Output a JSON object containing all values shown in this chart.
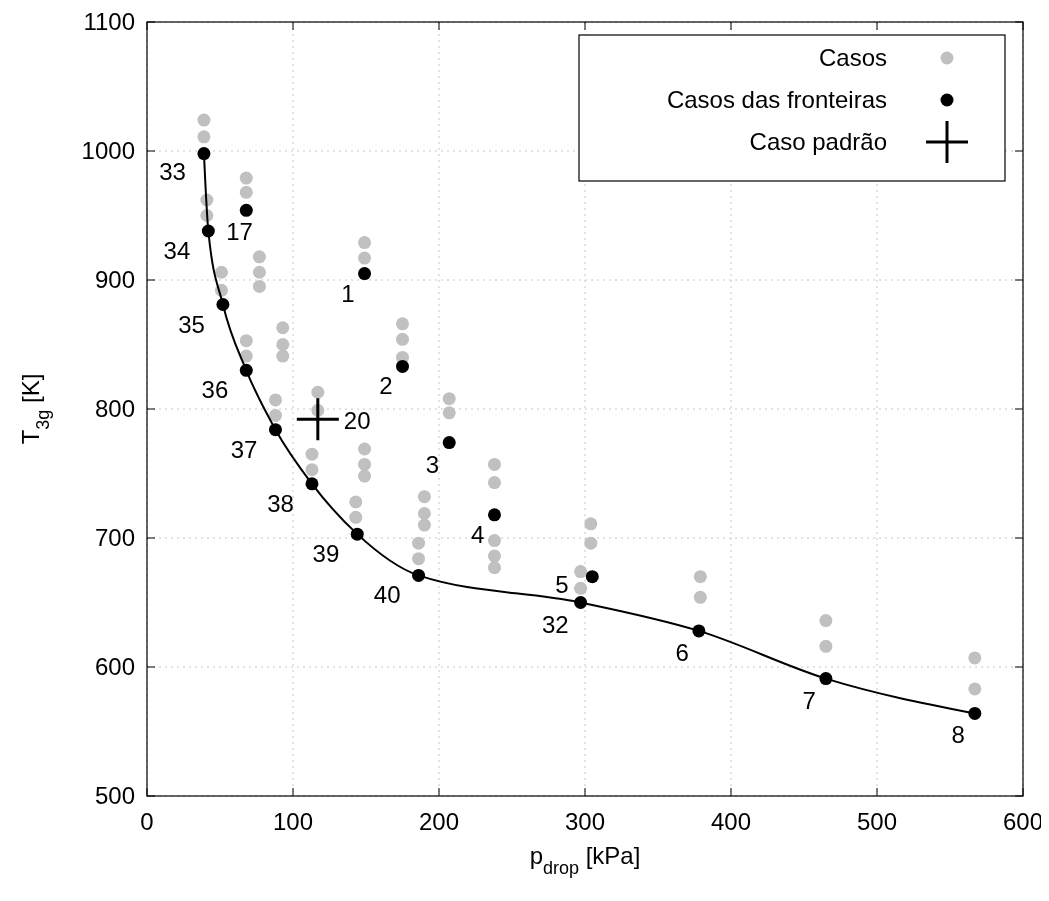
{
  "chart_data": {
    "type": "scatter",
    "xlabel": "p$_{drop}$ [kPa]",
    "ylabel": "T$_{3g}$ [K]",
    "xlim": [
      0,
      600
    ],
    "ylim": [
      500,
      1100
    ],
    "xticks": [
      0,
      100,
      200,
      300,
      400,
      500,
      600
    ],
    "yticks": [
      500,
      600,
      700,
      800,
      900,
      1000,
      1100
    ],
    "grid": true,
    "legend": "top right",
    "marker": "circle",
    "series": [
      {
        "name": "Casos",
        "color": "#c0c0c0",
        "x": [
          39,
          39,
          41,
          41,
          68,
          68,
          51,
          51,
          77,
          77,
          77,
          68,
          68,
          93,
          93,
          93,
          88,
          88,
          117,
          117,
          113,
          113,
          149,
          149,
          149,
          149,
          149,
          143,
          143,
          175,
          175,
          175,
          207,
          207,
          190,
          190,
          190,
          186,
          186,
          238,
          238,
          238,
          238,
          238,
          304,
          304,
          297,
          297,
          379,
          379,
          465,
          465,
          567,
          567
        ],
        "values": [
          1024,
          1011,
          962,
          950,
          979,
          968,
          906,
          892,
          918,
          906,
          895,
          853,
          841,
          863,
          850,
          841,
          807,
          795,
          813,
          799,
          765,
          753,
          929,
          917,
          769,
          757,
          748,
          728,
          716,
          866,
          854,
          840,
          808,
          797,
          732,
          719,
          710,
          696,
          684,
          757,
          743,
          698,
          686,
          677,
          711,
          696,
          674,
          661,
          670,
          654,
          636,
          616,
          607,
          583
        ]
      },
      {
        "type": "line",
        "color": "#000000",
        "marker": "none",
        "line_style": "solid",
        "x": [
          39,
          42,
          52,
          68,
          88,
          113,
          144,
          186,
          297,
          378,
          465,
          567
        ],
        "values": [
          998,
          938,
          881,
          830,
          784,
          742,
          703,
          671,
          650,
          628,
          591,
          564
        ]
      },
      {
        "name": "Casos das fronteiras",
        "color": "#000000",
        "x": [
          39,
          42,
          52,
          68,
          88,
          113,
          144,
          186,
          297,
          378,
          465,
          567,
          68,
          149,
          175,
          207,
          238,
          305
        ],
        "values": [
          998,
          938,
          881,
          830,
          784,
          742,
          703,
          671,
          650,
          628,
          591,
          564,
          954,
          905,
          833,
          774,
          718,
          670
        ]
      },
      {
        "name": "Caso padrão",
        "color": "#000000",
        "marker": "cross",
        "x": [
          117
        ],
        "values": [
          792
        ]
      }
    ],
    "annotations": [
      {
        "text": "33",
        "x": 39,
        "y": 998
      },
      {
        "text": "34",
        "x": 42,
        "y": 938
      },
      {
        "text": "35",
        "x": 52,
        "y": 881
      },
      {
        "text": "36",
        "x": 68,
        "y": 830
      },
      {
        "text": "37",
        "x": 88,
        "y": 784
      },
      {
        "text": "38",
        "x": 113,
        "y": 742
      },
      {
        "text": "39",
        "x": 144,
        "y": 703
      },
      {
        "text": "40",
        "x": 186,
        "y": 671
      },
      {
        "text": "32",
        "x": 297,
        "y": 650
      },
      {
        "text": "6",
        "x": 378,
        "y": 628
      },
      {
        "text": "7",
        "x": 465,
        "y": 591
      },
      {
        "text": "8",
        "x": 567,
        "y": 564
      },
      {
        "text": "17",
        "x": 68,
        "y": 954
      },
      {
        "text": "1",
        "x": 149,
        "y": 905
      },
      {
        "text": "2",
        "x": 175,
        "y": 833
      },
      {
        "text": "3",
        "x": 207,
        "y": 774
      },
      {
        "text": "4",
        "x": 238,
        "y": 718
      },
      {
        "text": "5",
        "x": 305,
        "y": 670
      },
      {
        "text": "20",
        "x": 117,
        "y": 792
      }
    ]
  }
}
